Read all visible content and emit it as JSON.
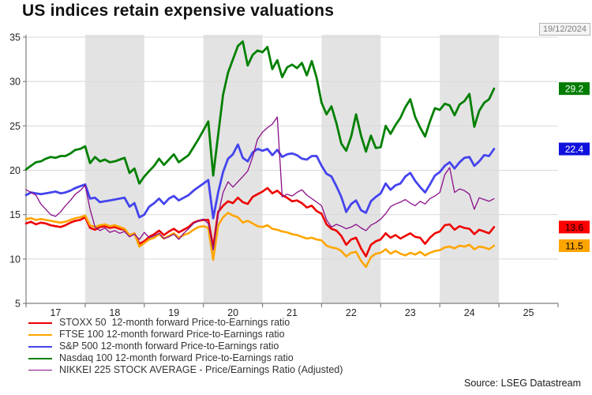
{
  "chart": {
    "title": "US indices retain expensive valuations",
    "date_label": "19/12/2024",
    "source": "Source: LSEG Datastream"
  },
  "chart_data": {
    "type": "line",
    "title": "US indices retain expensive valuations",
    "x_unit": "year",
    "x_start": 2017.0,
    "x_step": 0.0833333,
    "xlim": [
      2017,
      2026
    ],
    "ylim": [
      5,
      35
    ],
    "y_ticks": [
      5,
      10,
      15,
      20,
      25,
      30,
      35
    ],
    "y_tick_labels": [
      "5",
      "10",
      "15",
      "20",
      "25",
      "30",
      "35"
    ],
    "x_tick_years": [
      2017,
      2018,
      2019,
      2020,
      2021,
      2022,
      2023,
      2024,
      2025,
      2026
    ],
    "x_tick_labels": [
      "17",
      "18",
      "19",
      "20",
      "21",
      "22",
      "23",
      "24",
      "25"
    ],
    "shaded_year_bands": [
      [
        2018,
        2019
      ],
      [
        2020,
        2021
      ],
      [
        2022,
        2023
      ],
      [
        2024,
        2025
      ]
    ],
    "band_color": "#e3e3e3",
    "grid": "horizontal",
    "grid_color": "#d8d8d8",
    "axis_color": "#7f7f7f",
    "tick_text_color": "#262626",
    "legend_position": "bottom-left",
    "series": [
      {
        "name": "STOXX 50",
        "label": "STOXX 50  12-month forward Price-to-Earnings ratio",
        "color": "#ee0000",
        "line_width": 2.6,
        "end_label": "13.6",
        "end_label_bg": "#ff0000",
        "end_label_fg": "#000000",
        "values": [
          14.0,
          14.2,
          13.9,
          14.1,
          14.0,
          13.8,
          13.7,
          13.6,
          13.8,
          14.1,
          14.3,
          14.4,
          14.7,
          13.5,
          13.3,
          13.6,
          13.7,
          13.5,
          13.6,
          13.4,
          13.3,
          12.6,
          12.9,
          11.7,
          12.0,
          12.5,
          12.8,
          13.2,
          12.7,
          13.1,
          13.4,
          13.0,
          13.3,
          13.6,
          14.1,
          14.3,
          14.4,
          14.4,
          11.3,
          15.3,
          16.0,
          16.5,
          16.3,
          16.9,
          16.4,
          16.2,
          17.0,
          17.3,
          17.6,
          18.0,
          17.4,
          17.7,
          17.2,
          16.9,
          16.5,
          16.6,
          16.3,
          15.8,
          16.0,
          15.4,
          15.1,
          13.9,
          13.4,
          13.2,
          12.6,
          11.6,
          12.2,
          12.4,
          11.2,
          10.3,
          11.6,
          12.0,
          12.2,
          12.9,
          12.4,
          12.7,
          12.3,
          12.6,
          12.9,
          12.5,
          12.4,
          11.7,
          12.4,
          12.9,
          13.1,
          13.8,
          13.9,
          13.3,
          13.7,
          13.5,
          13.4,
          12.8,
          13.3,
          13.1,
          12.9,
          13.6
        ]
      },
      {
        "name": "FTSE 100",
        "label": "FTSE 100 12-month forward Price-to-Earnings ratio",
        "color": "#ffa500",
        "line_width": 2.6,
        "end_label": "11.5",
        "end_label_bg": "#ffa500",
        "end_label_fg": "#000000",
        "values": [
          14.5,
          14.6,
          14.4,
          14.5,
          14.4,
          14.3,
          14.2,
          14.1,
          14.2,
          14.4,
          14.6,
          14.7,
          14.9,
          13.8,
          13.6,
          13.8,
          13.9,
          13.7,
          13.8,
          13.6,
          13.4,
          12.7,
          12.9,
          11.4,
          11.8,
          12.2,
          12.4,
          12.8,
          12.3,
          12.6,
          12.9,
          12.4,
          12.7,
          12.9,
          13.3,
          13.6,
          13.7,
          13.5,
          9.9,
          13.8,
          14.7,
          15.2,
          14.9,
          14.7,
          14.1,
          14.3,
          14.0,
          13.7,
          13.6,
          13.8,
          13.4,
          13.3,
          13.1,
          13.0,
          12.8,
          12.7,
          12.5,
          12.3,
          12.4,
          12.2,
          12.1,
          11.5,
          11.3,
          11.2,
          10.9,
          10.3,
          10.7,
          10.8,
          9.8,
          9.1,
          10.2,
          10.6,
          10.7,
          11.1,
          10.6,
          10.9,
          10.6,
          10.4,
          10.7,
          10.5,
          10.8,
          10.4,
          10.7,
          10.9,
          11.0,
          11.3,
          11.4,
          11.2,
          11.5,
          11.4,
          11.6,
          11.1,
          11.4,
          11.3,
          11.1,
          11.5
        ]
      },
      {
        "name": "S&P 500",
        "label": "S&P 500 12-month forward Price-to-Earnings ratio",
        "color": "#4444ee",
        "line_width": 2.8,
        "end_label": "22.4",
        "end_label_bg": "#1111dd",
        "end_label_fg": "#ffffff",
        "values": [
          17.2,
          17.5,
          17.4,
          17.3,
          17.4,
          17.5,
          17.6,
          17.4,
          17.5,
          17.7,
          18.0,
          18.2,
          18.4,
          16.8,
          16.9,
          16.4,
          16.5,
          16.6,
          16.7,
          16.8,
          16.9,
          15.9,
          16.3,
          14.7,
          15.0,
          15.9,
          16.3,
          16.8,
          16.2,
          16.8,
          17.1,
          16.6,
          16.9,
          17.2,
          17.7,
          18.1,
          18.5,
          18.9,
          14.6,
          17.5,
          19.8,
          21.3,
          21.8,
          22.9,
          21.4,
          21.0,
          22.0,
          22.4,
          22.2,
          22.4,
          21.7,
          22.3,
          21.5,
          21.8,
          21.9,
          21.7,
          21.3,
          21.2,
          21.6,
          21.6,
          20.5,
          19.6,
          19.3,
          18.2,
          17.0,
          15.3,
          16.2,
          16.6,
          15.5,
          15.2,
          16.5,
          17.0,
          17.4,
          18.5,
          17.8,
          18.3,
          18.5,
          19.3,
          19.7,
          18.8,
          18.1,
          17.5,
          18.4,
          19.4,
          19.8,
          20.5,
          20.9,
          20.2,
          20.9,
          21.4,
          21.5,
          20.5,
          21.0,
          21.7,
          21.6,
          22.4
        ]
      },
      {
        "name": "Nasdaq 100",
        "label": "Nasdaq 100 12-month forward Price-to-Earnings ratio",
        "color": "#008000",
        "line_width": 2.8,
        "end_label": "29.2",
        "end_label_bg": "#007d00",
        "end_label_fg": "#ffffff",
        "values": [
          20.1,
          20.5,
          20.9,
          21.0,
          21.3,
          21.5,
          21.4,
          21.6,
          21.6,
          21.9,
          22.3,
          22.4,
          22.7,
          20.8,
          21.5,
          21.0,
          21.2,
          20.9,
          21.0,
          21.2,
          21.4,
          19.7,
          20.2,
          18.5,
          19.3,
          19.9,
          20.5,
          21.3,
          20.6,
          21.2,
          21.8,
          20.9,
          21.3,
          21.7,
          22.6,
          23.5,
          24.5,
          25.5,
          19.4,
          24.0,
          28.5,
          31.0,
          32.5,
          34.0,
          34.5,
          31.8,
          33.0,
          33.5,
          33.3,
          33.9,
          31.4,
          32.4,
          30.5,
          31.6,
          31.9,
          31.5,
          32.1,
          30.7,
          32.3,
          30.4,
          27.6,
          26.3,
          27.2,
          25.3,
          23.0,
          22.2,
          23.8,
          26.3,
          23.9,
          22.1,
          23.9,
          22.5,
          22.6,
          25.0,
          24.1,
          25.1,
          25.9,
          27.1,
          28.0,
          26.0,
          24.8,
          23.8,
          25.5,
          27.0,
          26.8,
          27.5,
          27.3,
          26.2,
          27.4,
          27.8,
          28.6,
          24.9,
          26.7,
          27.6,
          28.0,
          29.2
        ]
      },
      {
        "name": "NIKKEI 225",
        "label": "NIKKEI 225 STOCK AVERAGE - Price/Earnings Ratio (Adjusted)",
        "color": "#8a0f8a",
        "line_width": 1.3,
        "end_label": null,
        "values": [
          17.8,
          17.5,
          17.2,
          16.2,
          15.6,
          15.0,
          14.8,
          15.3,
          16.0,
          16.6,
          17.3,
          17.7,
          18.3,
          15.6,
          13.6,
          13.2,
          13.5,
          13.0,
          13.2,
          12.9,
          13.1,
          12.5,
          12.8,
          12.2,
          13.0,
          12.4,
          12.6,
          12.9,
          12.3,
          12.5,
          12.8,
          12.2,
          12.9,
          13.4,
          14.0,
          14.3,
          14.5,
          14.0,
          11.0,
          15.0,
          17.5,
          18.7,
          18.1,
          18.7,
          19.3,
          19.9,
          21.5,
          23.5,
          24.3,
          24.8,
          25.2,
          26.0,
          17.0,
          17.3,
          17.1,
          17.5,
          17.8,
          17.2,
          16.8,
          16.4,
          16.0,
          14.4,
          13.6,
          13.9,
          13.7,
          13.4,
          13.6,
          13.9,
          13.5,
          13.2,
          13.8,
          14.1,
          14.5,
          15.1,
          15.9,
          16.2,
          16.4,
          16.7,
          16.3,
          16.0,
          16.5,
          16.2,
          16.8,
          17.1,
          17.5,
          19.5,
          20.3,
          17.5,
          17.9,
          17.7,
          17.3,
          15.6,
          16.9,
          16.7,
          16.5,
          16.8
        ]
      }
    ]
  }
}
